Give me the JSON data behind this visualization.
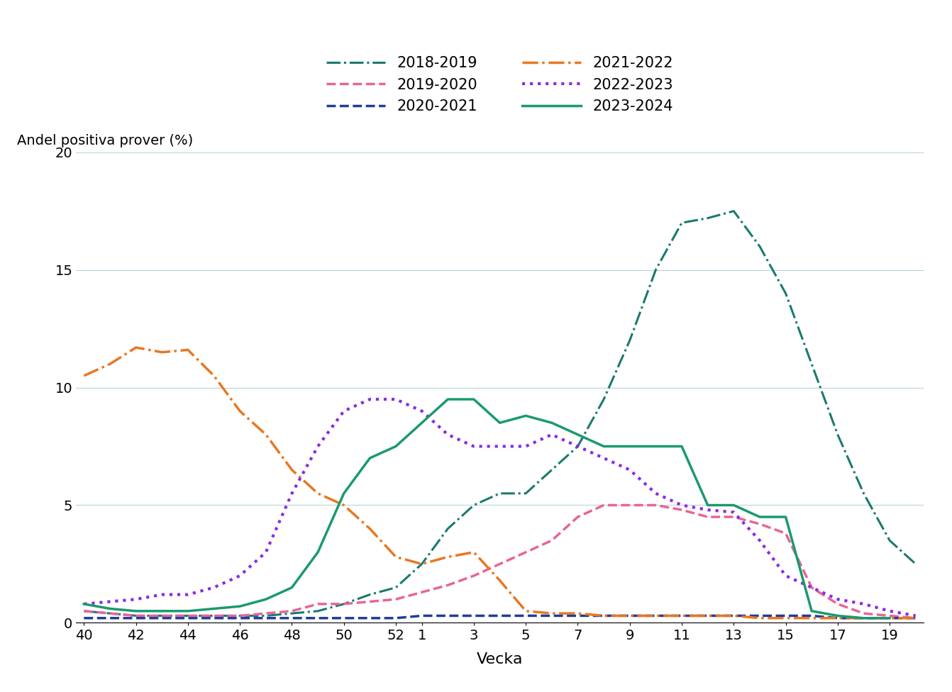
{
  "title": "",
  "ylabel": "Andel positiva prover (%)",
  "xlabel": "Vecka",
  "tick_labels": [
    40,
    42,
    44,
    46,
    48,
    50,
    52,
    1,
    3,
    5,
    7,
    9,
    11,
    13,
    15,
    17,
    19
  ],
  "ylim": [
    0,
    20
  ],
  "yticks": [
    0,
    5,
    10,
    15,
    20
  ],
  "series": [
    {
      "label": "2018-2019",
      "color": "#1a7a6e",
      "linestyle": "-.",
      "linewidth": 2.2,
      "weeks": [
        40,
        41,
        42,
        43,
        44,
        45,
        46,
        47,
        48,
        49,
        50,
        51,
        52,
        1,
        2,
        3,
        4,
        5,
        6,
        7,
        8,
        9,
        10,
        11,
        12,
        13,
        14,
        15,
        16,
        17,
        18,
        19,
        20
      ],
      "values": [
        0.5,
        0.4,
        0.3,
        0.3,
        0.3,
        0.3,
        0.3,
        0.3,
        0.4,
        0.5,
        0.8,
        1.2,
        1.5,
        2.5,
        4.0,
        5.0,
        5.5,
        5.5,
        6.5,
        7.5,
        9.5,
        12.0,
        15.0,
        17.0,
        17.2,
        17.5,
        16.0,
        14.0,
        11.0,
        8.0,
        5.5,
        3.5,
        2.5
      ]
    },
    {
      "label": "2019-2020",
      "color": "#e8649a",
      "linestyle": "--",
      "linewidth": 2.5,
      "weeks": [
        40,
        41,
        42,
        43,
        44,
        45,
        46,
        47,
        48,
        49,
        50,
        51,
        52,
        1,
        2,
        3,
        4,
        5,
        6,
        7,
        8,
        9,
        10,
        11,
        12,
        13,
        14,
        15,
        16,
        17,
        18,
        19,
        20
      ],
      "values": [
        0.5,
        0.4,
        0.3,
        0.3,
        0.3,
        0.3,
        0.3,
        0.4,
        0.5,
        0.8,
        0.8,
        0.9,
        1.0,
        1.3,
        1.6,
        2.0,
        2.5,
        3.0,
        3.5,
        4.5,
        5.0,
        5.0,
        5.0,
        4.8,
        4.5,
        4.5,
        4.2,
        3.8,
        1.5,
        0.8,
        0.4,
        0.3,
        0.2
      ]
    },
    {
      "label": "2020-2021",
      "color": "#1f3d99",
      "linestyle": "--",
      "linewidth": 2.5,
      "weeks": [
        40,
        41,
        42,
        43,
        44,
        45,
        46,
        47,
        48,
        49,
        50,
        51,
        52,
        1,
        2,
        3,
        4,
        5,
        6,
        7,
        8,
        9,
        10,
        11,
        12,
        13,
        14,
        15,
        16,
        17,
        18,
        19,
        20
      ],
      "values": [
        0.2,
        0.2,
        0.2,
        0.2,
        0.2,
        0.2,
        0.2,
        0.2,
        0.2,
        0.2,
        0.2,
        0.2,
        0.2,
        0.3,
        0.3,
        0.3,
        0.3,
        0.3,
        0.3,
        0.3,
        0.3,
        0.3,
        0.3,
        0.3,
        0.3,
        0.3,
        0.3,
        0.3,
        0.3,
        0.2,
        0.2,
        0.2,
        0.2
      ]
    },
    {
      "label": "2021-2022",
      "color": "#e87722",
      "linestyle": "-.",
      "linewidth": 2.5,
      "weeks": [
        40,
        41,
        42,
        43,
        44,
        45,
        46,
        47,
        48,
        49,
        50,
        51,
        52,
        1,
        2,
        3,
        4,
        5,
        6,
        7,
        8,
        9,
        10,
        11,
        12,
        13,
        14,
        15,
        16,
        17,
        18,
        19,
        20
      ],
      "values": [
        10.5,
        11.0,
        11.7,
        11.5,
        11.6,
        10.5,
        9.0,
        8.0,
        6.5,
        5.5,
        5.0,
        4.0,
        2.8,
        2.5,
        2.8,
        3.0,
        1.8,
        0.5,
        0.4,
        0.4,
        0.3,
        0.3,
        0.3,
        0.3,
        0.3,
        0.3,
        0.2,
        0.2,
        0.2,
        0.2,
        0.2,
        0.2,
        0.2
      ]
    },
    {
      "label": "2022-2023",
      "color": "#8b2be2",
      "linestyle": ":",
      "linewidth": 3.0,
      "weeks": [
        40,
        41,
        42,
        43,
        44,
        45,
        46,
        47,
        48,
        49,
        50,
        51,
        52,
        1,
        2,
        3,
        4,
        5,
        6,
        7,
        8,
        9,
        10,
        11,
        12,
        13,
        14,
        15,
        16,
        17,
        18,
        19,
        20
      ],
      "values": [
        0.8,
        0.9,
        1.0,
        1.2,
        1.2,
        1.5,
        2.0,
        3.0,
        5.5,
        7.5,
        9.0,
        9.5,
        9.5,
        9.0,
        8.0,
        7.5,
        7.5,
        7.5,
        8.0,
        7.5,
        7.0,
        6.5,
        5.5,
        5.0,
        4.8,
        4.7,
        3.5,
        2.0,
        1.5,
        1.0,
        0.8,
        0.5,
        0.3
      ]
    },
    {
      "label": "2023-2024",
      "color": "#1a9a6e",
      "linestyle": "-",
      "linewidth": 2.5,
      "weeks": [
        40,
        41,
        42,
        43,
        44,
        45,
        46,
        47,
        48,
        49,
        50,
        51,
        52,
        1,
        2,
        3,
        4,
        5,
        6,
        7,
        8,
        9,
        10,
        11,
        12,
        13,
        14,
        15,
        16,
        17,
        18,
        19
      ],
      "values": [
        0.8,
        0.6,
        0.5,
        0.5,
        0.5,
        0.6,
        0.7,
        1.0,
        1.5,
        3.0,
        5.5,
        7.0,
        7.5,
        8.5,
        9.5,
        9.5,
        8.5,
        8.8,
        8.5,
        8.0,
        7.5,
        7.5,
        7.5,
        7.5,
        5.0,
        5.0,
        4.5,
        4.5,
        0.5,
        0.3,
        0.2,
        0.2
      ]
    }
  ]
}
